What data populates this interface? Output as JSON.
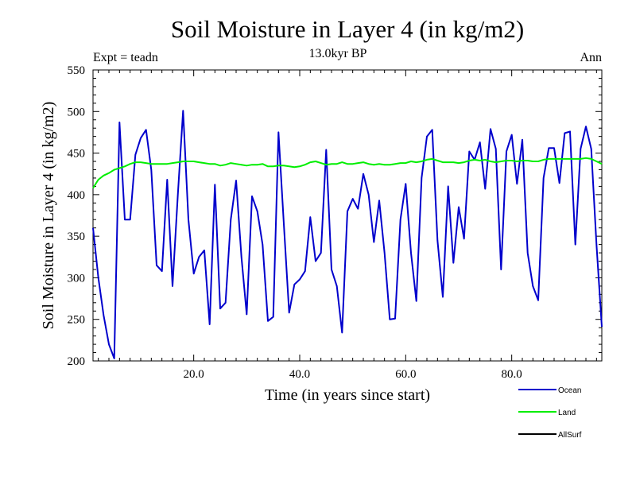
{
  "chart_data": {
    "type": "line",
    "title": "Soil Moisture in Layer 4 (in kg/m2)",
    "subtitle": "13.0kyr BP",
    "experiment": "Expt = teadn",
    "period": "Ann",
    "xlabel": "Time (in years since start)",
    "ylabel": "Soil Moisture in Layer 4 (in kg/m2)",
    "xlim": [
      1,
      97
    ],
    "ylim": [
      200,
      550
    ],
    "x_ticks": [
      20,
      40,
      60,
      80
    ],
    "x_tick_labels": [
      "20.0",
      "40.0",
      "60.0",
      "80.0"
    ],
    "y_ticks": [
      200,
      250,
      300,
      350,
      400,
      450,
      500,
      550
    ],
    "y_tick_labels": [
      "200",
      "250",
      "300",
      "350",
      "400",
      "450",
      "500",
      "550"
    ],
    "x_start": 1,
    "x_step": 1,
    "series": [
      {
        "name": "Ocean",
        "color": "#0000cc",
        "values": [
          360,
          300,
          255,
          220,
          203,
          487,
          370,
          370,
          448,
          468,
          478,
          430,
          315,
          308,
          418,
          290,
          400,
          501,
          370,
          305,
          325,
          333,
          244,
          412,
          263,
          270,
          370,
          417,
          325,
          256,
          398,
          380,
          340,
          248,
          253,
          475,
          365,
          258,
          292,
          298,
          308,
          373,
          320,
          330,
          454,
          310,
          290,
          234,
          380,
          395,
          383,
          425,
          400,
          343,
          393,
          330,
          250,
          251,
          370,
          413,
          330,
          272,
          420,
          470,
          478,
          345,
          277,
          410,
          318,
          385,
          347,
          452,
          442,
          463,
          407,
          479,
          455,
          310,
          452,
          472,
          413,
          466,
          330,
          290,
          273,
          420,
          456,
          456,
          414,
          474,
          476,
          340,
          455,
          482,
          455,
          340,
          241
        ]
      },
      {
        "name": "Land",
        "color": "#00ee00",
        "values": [
          408,
          418,
          423,
          426,
          430,
          432,
          434,
          437,
          439,
          439,
          438,
          437,
          437,
          437,
          437,
          438,
          439,
          440,
          440,
          440,
          439,
          438,
          437,
          437,
          435,
          436,
          438,
          437,
          436,
          435,
          436,
          436,
          437,
          434,
          434,
          435,
          435,
          434,
          433,
          434,
          436,
          439,
          440,
          438,
          436,
          437,
          437,
          439,
          437,
          437,
          438,
          439,
          437,
          436,
          437,
          436,
          436,
          437,
          438,
          438,
          440,
          439,
          440,
          442,
          443,
          441,
          439,
          439,
          439,
          438,
          439,
          441,
          442,
          441,
          442,
          440,
          439,
          440,
          441,
          441,
          440,
          441,
          441,
          440,
          440,
          442,
          443,
          443,
          443,
          443,
          443,
          443,
          443,
          444,
          443,
          440,
          437
        ]
      },
      {
        "name": "AllSurf",
        "color": "#000000",
        "values": []
      }
    ]
  }
}
